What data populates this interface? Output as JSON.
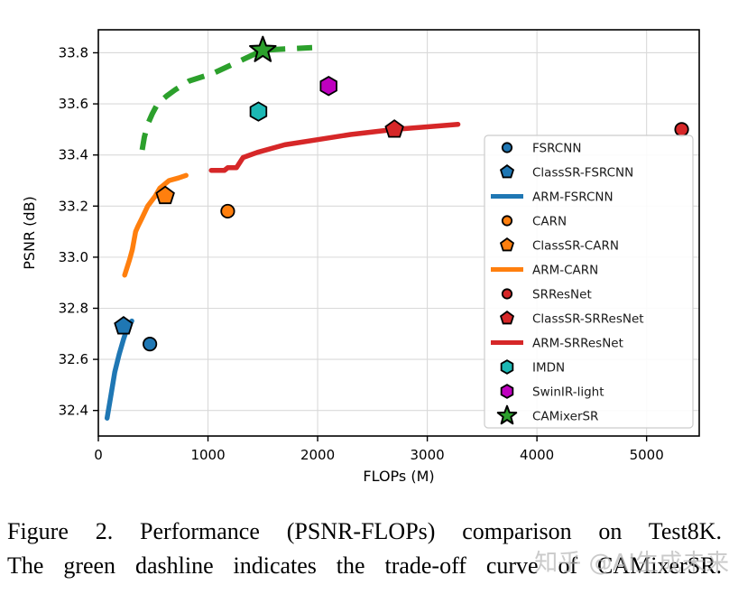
{
  "figure": {
    "background": "#ffffff",
    "frame_color": "#000000",
    "grid_color": "#d9d9d9"
  },
  "chart_data": {
    "type": "scatter",
    "title": "",
    "xlabel": "FLOPs (M)",
    "ylabel": "PSNR (dB)",
    "xlim": [
      0,
      5480
    ],
    "ylim": [
      32.3,
      33.89
    ],
    "xticks": [
      0,
      1000,
      2000,
      3000,
      4000,
      5000
    ],
    "xtick_labels": [
      "0",
      "1000",
      "2000",
      "3000",
      "4000",
      "5000"
    ],
    "yticks": [
      32.4,
      32.6,
      32.8,
      33.0,
      33.2,
      33.4,
      33.6,
      33.8
    ],
    "ytick_labels": [
      "32.4",
      "32.6",
      "32.8",
      "33.0",
      "33.2",
      "33.4",
      "33.6",
      "33.8"
    ],
    "grid": true,
    "legend_position": "lower-right-inside",
    "series": [
      {
        "name": "FSRCNN",
        "kind": "scatter",
        "marker": "circle",
        "color": "#1f77b4",
        "points": [
          [
            470,
            32.66
          ]
        ]
      },
      {
        "name": "ClassSR-FSRCNN",
        "kind": "scatter",
        "marker": "pentagon",
        "color": "#1f77b4",
        "points": [
          [
            230,
            32.73
          ]
        ]
      },
      {
        "name": "ARM-FSRCNN",
        "kind": "line",
        "color": "#1f77b4",
        "points": [
          [
            80,
            32.37
          ],
          [
            115,
            32.46
          ],
          [
            150,
            32.55
          ],
          [
            190,
            32.62
          ],
          [
            230,
            32.68
          ],
          [
            270,
            32.73
          ],
          [
            305,
            32.75
          ]
        ]
      },
      {
        "name": "CARN",
        "kind": "scatter",
        "marker": "circle",
        "color": "#ff7f0e",
        "points": [
          [
            1180,
            33.18
          ]
        ]
      },
      {
        "name": "ClassSR-CARN",
        "kind": "scatter",
        "marker": "pentagon",
        "color": "#ff7f0e",
        "points": [
          [
            610,
            33.24
          ]
        ]
      },
      {
        "name": "ARM-CARN",
        "kind": "line",
        "color": "#ff7f0e",
        "points": [
          [
            240,
            32.93
          ],
          [
            285,
            32.99
          ],
          [
            310,
            33.03
          ],
          [
            340,
            33.1
          ],
          [
            360,
            33.12
          ],
          [
            395,
            33.15
          ],
          [
            450,
            33.2
          ],
          [
            520,
            33.24
          ],
          [
            560,
            33.27
          ],
          [
            645,
            33.3
          ],
          [
            730,
            33.31
          ],
          [
            800,
            33.32
          ]
        ]
      },
      {
        "name": "SRResNet",
        "kind": "scatter",
        "marker": "circle",
        "color": "#d62728",
        "points": [
          [
            5320,
            33.5
          ]
        ]
      },
      {
        "name": "ClassSR-SRResNet",
        "kind": "scatter",
        "marker": "pentagon",
        "color": "#d62728",
        "points": [
          [
            2700,
            33.5
          ]
        ]
      },
      {
        "name": "ARM-SRResNet",
        "kind": "line",
        "color": "#d62728",
        "points": [
          [
            1030,
            33.34
          ],
          [
            1150,
            33.34
          ],
          [
            1180,
            33.35
          ],
          [
            1260,
            33.35
          ],
          [
            1320,
            33.39
          ],
          [
            1450,
            33.41
          ],
          [
            1700,
            33.44
          ],
          [
            2000,
            33.46
          ],
          [
            2300,
            33.48
          ],
          [
            2700,
            33.5
          ],
          [
            3000,
            33.51
          ],
          [
            3280,
            33.52
          ]
        ]
      },
      {
        "name": "IMDN",
        "kind": "scatter",
        "marker": "hexagon",
        "color": "#1cb8b4",
        "points": [
          [
            1460,
            33.57
          ]
        ]
      },
      {
        "name": "SwinIR-light",
        "kind": "scatter",
        "marker": "hexagon",
        "color": "#bf00bf",
        "points": [
          [
            2100,
            33.67
          ]
        ]
      },
      {
        "name": "CAMixerSR",
        "kind": "scatter",
        "marker": "star",
        "color": "#2ca02c",
        "points": [
          [
            1500,
            33.81
          ]
        ]
      },
      {
        "name": "CAMixerSR trade-off curve",
        "kind": "line",
        "dashed": true,
        "legend": false,
        "color": "#2ca02c",
        "points": [
          [
            400,
            33.42
          ],
          [
            420,
            33.47
          ],
          [
            450,
            33.52
          ],
          [
            490,
            33.56
          ],
          [
            540,
            33.6
          ],
          [
            620,
            33.63
          ],
          [
            700,
            33.655
          ],
          [
            830,
            33.69
          ],
          [
            1050,
            33.72
          ],
          [
            1300,
            33.77
          ],
          [
            1500,
            33.81
          ],
          [
            1700,
            33.815
          ],
          [
            1950,
            33.82
          ]
        ]
      }
    ]
  },
  "caption": {
    "line1": "Figure 2. Performance (PSNR-FLOPs) comparison on Test8K.",
    "line2": "The green dashline indicates the trade-off curve of CAMixerSR."
  },
  "watermark": {
    "text": "知乎 @AI生成未来",
    "color": "#b5b5b5"
  }
}
